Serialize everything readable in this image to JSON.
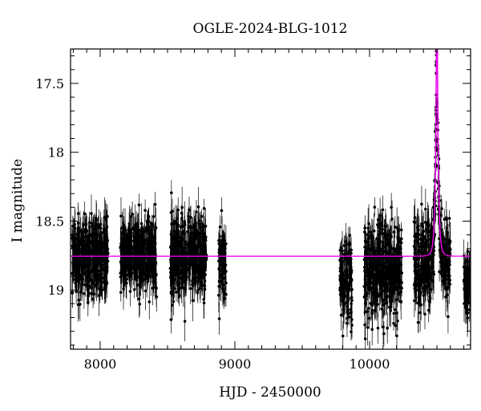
{
  "chart_data": {
    "type": "scatter",
    "title": "OGLE-2024-BLG-1012",
    "xlabel": "HJD - 2450000",
    "ylabel": "I magnitude",
    "xlim": [
      7780,
      10750
    ],
    "ylim": [
      19.43,
      17.25
    ],
    "y_inverted": true,
    "x_ticks": [
      8000,
      9000,
      10000
    ],
    "y_ticks": [
      17.5,
      18,
      18.5,
      19
    ],
    "x_tick_labels": [
      "8000",
      "9000",
      "10000"
    ],
    "y_tick_labels": [
      "17.5",
      "18",
      "18.5",
      "19"
    ],
    "grid": false,
    "baseline_mag": 18.755,
    "observation_seasons": [
      {
        "start": 7790,
        "end": 8060,
        "mean_mag": 18.76,
        "scatter": 0.13
      },
      {
        "start": 8150,
        "end": 8420,
        "mean_mag": 18.74,
        "scatter": 0.13
      },
      {
        "start": 8520,
        "end": 8790,
        "mean_mag": 18.76,
        "scatter": 0.14
      },
      {
        "start": 8880,
        "end": 8935,
        "mean_mag": 18.8,
        "scatter": 0.12
      },
      {
        "start": 9780,
        "end": 9870,
        "mean_mag": 18.9,
        "scatter": 0.16
      },
      {
        "start": 9960,
        "end": 10240,
        "mean_mag": 18.85,
        "scatter": 0.17
      },
      {
        "start": 10330,
        "end": 10600,
        "mean_mag": 18.8,
        "scatter": 0.15
      },
      {
        "start": 10700,
        "end": 10750,
        "mean_mag": 18.92,
        "scatter": 0.12
      }
    ],
    "series": [
      {
        "kind": "model",
        "model": "point-lens microlensing",
        "t0": 10500,
        "tE": 18,
        "u0": 0.12,
        "baseline_mag": 18.755,
        "color": "#ee00ee"
      }
    ],
    "peak_points": [
      {
        "x": 10493,
        "y": 18.1
      },
      {
        "x": 10496,
        "y": 17.92
      },
      {
        "x": 10498,
        "y": 17.74
      },
      {
        "x": 10500,
        "y": 17.64
      },
      {
        "x": 10502,
        "y": 17.76
      },
      {
        "x": 10505,
        "y": 17.98
      },
      {
        "x": 10509,
        "y": 18.22
      },
      {
        "x": 10515,
        "y": 18.45
      }
    ],
    "colors": {
      "data": "#000000",
      "model": "#ee00ee",
      "frame": "#000000"
    }
  }
}
